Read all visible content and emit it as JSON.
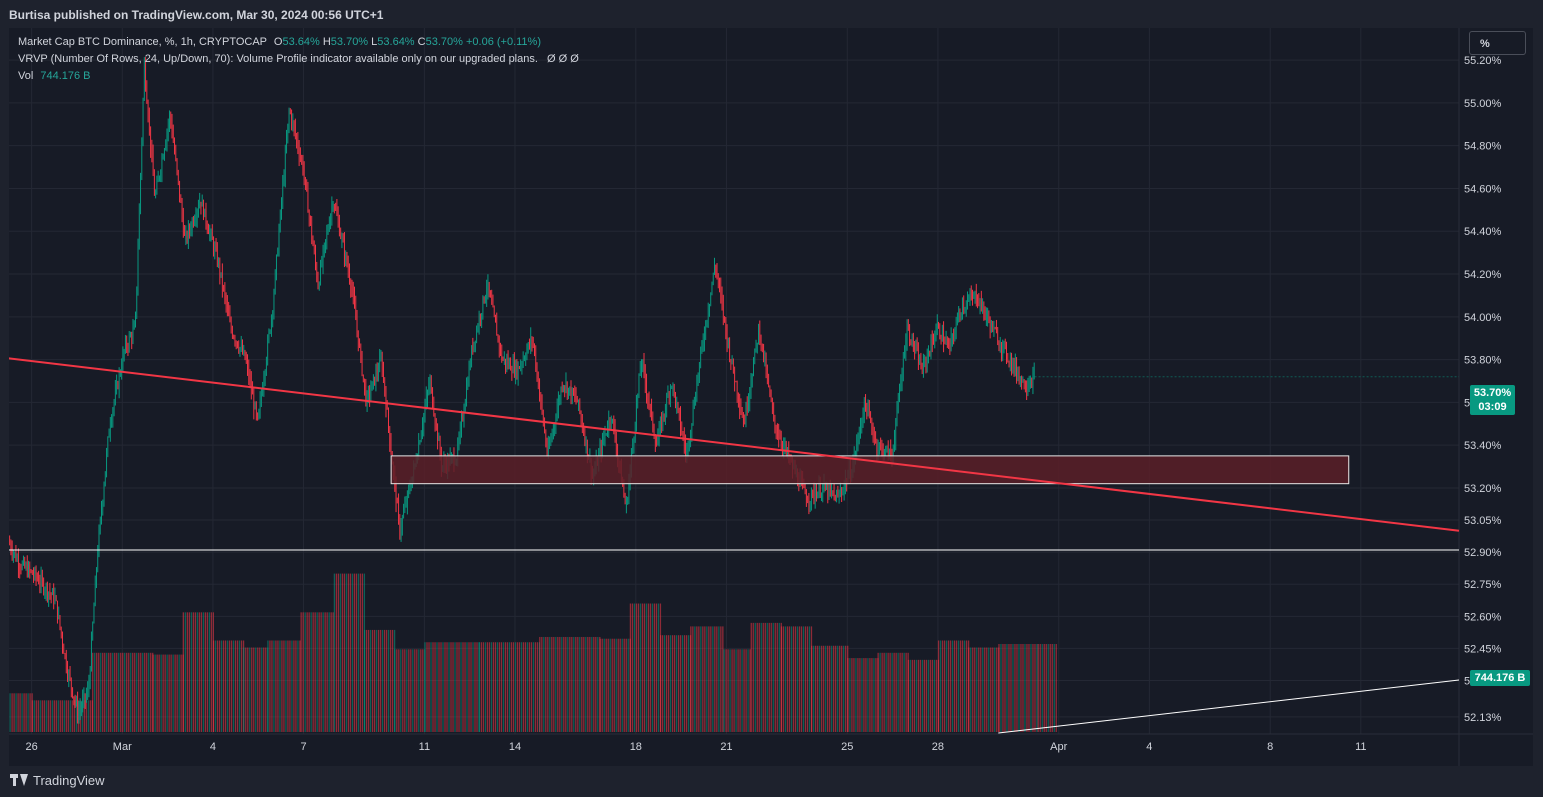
{
  "header": {
    "publisher": "Burtisa published on TradingView.com, Mar 30, 2024 00:56 UTC+1"
  },
  "legend": {
    "title": "Market Cap BTC Dominance, %, 1h, CRYPTOCAP",
    "open_label": "O",
    "open": "53.64%",
    "high_label": "H",
    "high": "53.70%",
    "low_label": "L",
    "low": "53.64%",
    "close_label": "C",
    "close": "53.70%",
    "change": "+0.06 (+0.11%)",
    "vrvp": "VRVP (Number Of Rows, 24, Up/Down, 70): Volume Profile indicator available only on our upgraded plans.",
    "vrvp_values": "Ø  Ø  Ø",
    "vol_label": "Vol",
    "vol_value": "744.176 B"
  },
  "scale_mode": "%",
  "price_tag": {
    "value": "53.70%",
    "countdown": "03:09"
  },
  "volume_tag": "744.176 B",
  "footer": {
    "brand": "TradingView"
  },
  "colors": {
    "up": "#089981",
    "down": "#f23645",
    "trendline": "#f23645",
    "zone_fill": "#5a1e28",
    "level_line": "#ffffff"
  },
  "chart_data": {
    "type": "candlestick",
    "symbol": "Market Cap BTC Dominance",
    "interval": "1h",
    "x_tick_labels": [
      {
        "label": "26",
        "day": 1
      },
      {
        "label": "Mar",
        "day": 4
      },
      {
        "label": "4",
        "day": 7
      },
      {
        "label": "7",
        "day": 10
      },
      {
        "label": "11",
        "day": 14
      },
      {
        "label": "14",
        "day": 17
      },
      {
        "label": "18",
        "day": 21
      },
      {
        "label": "21",
        "day": 24
      },
      {
        "label": "25",
        "day": 28
      },
      {
        "label": "28",
        "day": 31
      },
      {
        "label": "Apr",
        "day": 35
      },
      {
        "label": "4",
        "day": 38
      },
      {
        "label": "8",
        "day": 42
      },
      {
        "label": "11",
        "day": 45
      }
    ],
    "y_tick_labels": [
      "55.20%",
      "55.00%",
      "54.80%",
      "54.60%",
      "54.40%",
      "54.20%",
      "54.00%",
      "53.80%",
      "53.60%",
      "53.40%",
      "53.20%",
      "53.05%",
      "52.90%",
      "52.75%",
      "52.60%",
      "52.45%",
      "52.30%",
      "52.13%"
    ],
    "ylim": [
      52.05,
      55.35
    ],
    "xlim_days": [
      0.25,
      48.25
    ],
    "price_path": [
      [
        0.25,
        52.95
      ],
      [
        0.6,
        52.85
      ],
      [
        1.2,
        52.78
      ],
      [
        1.8,
        52.68
      ],
      [
        2.2,
        52.35
      ],
      [
        2.55,
        52.15
      ],
      [
        2.9,
        52.25
      ],
      [
        3.2,
        52.9
      ],
      [
        3.6,
        53.5
      ],
      [
        4.1,
        53.85
      ],
      [
        4.45,
        53.95
      ],
      [
        4.75,
        55.18
      ],
      [
        5.1,
        54.55
      ],
      [
        5.6,
        54.95
      ],
      [
        6.1,
        54.35
      ],
      [
        6.6,
        54.55
      ],
      [
        7.2,
        54.25
      ],
      [
        7.6,
        53.95
      ],
      [
        8.1,
        53.8
      ],
      [
        8.5,
        53.5
      ],
      [
        9.0,
        54.05
      ],
      [
        9.55,
        54.97
      ],
      [
        10.0,
        54.7
      ],
      [
        10.5,
        54.15
      ],
      [
        11.0,
        54.55
      ],
      [
        11.6,
        54.15
      ],
      [
        12.1,
        53.6
      ],
      [
        12.6,
        53.8
      ],
      [
        13.2,
        53.0
      ],
      [
        13.7,
        53.3
      ],
      [
        14.2,
        53.7
      ],
      [
        14.6,
        53.3
      ],
      [
        15.1,
        53.35
      ],
      [
        15.6,
        53.85
      ],
      [
        16.1,
        54.15
      ],
      [
        16.6,
        53.8
      ],
      [
        17.1,
        53.75
      ],
      [
        17.6,
        53.9
      ],
      [
        18.1,
        53.35
      ],
      [
        18.6,
        53.7
      ],
      [
        19.1,
        53.6
      ],
      [
        19.6,
        53.25
      ],
      [
        20.2,
        53.55
      ],
      [
        20.7,
        53.1
      ],
      [
        21.2,
        53.8
      ],
      [
        21.7,
        53.4
      ],
      [
        22.2,
        53.7
      ],
      [
        22.7,
        53.35
      ],
      [
        23.2,
        53.85
      ],
      [
        23.65,
        54.25
      ],
      [
        24.1,
        53.85
      ],
      [
        24.6,
        53.5
      ],
      [
        25.1,
        53.95
      ],
      [
        25.6,
        53.5
      ],
      [
        26.2,
        53.3
      ],
      [
        26.7,
        53.15
      ],
      [
        27.2,
        53.2
      ],
      [
        27.7,
        53.15
      ],
      [
        28.2,
        53.3
      ],
      [
        28.6,
        53.6
      ],
      [
        29.0,
        53.4
      ],
      [
        29.5,
        53.35
      ],
      [
        30.0,
        53.95
      ],
      [
        30.5,
        53.75
      ],
      [
        31.0,
        53.95
      ],
      [
        31.4,
        53.85
      ],
      [
        31.8,
        54.05
      ],
      [
        32.3,
        54.1
      ],
      [
        32.8,
        53.95
      ],
      [
        33.4,
        53.8
      ],
      [
        33.9,
        53.68
      ],
      [
        34.2,
        53.72
      ]
    ],
    "trendline": {
      "start": [
        0.0,
        53.81
      ],
      "end": [
        48.25,
        53.0
      ]
    },
    "support_zone": {
      "day_start": 12.9,
      "day_end": 44.6,
      "upper": 53.35,
      "lower": 53.22
    },
    "horizontal_level": 52.91,
    "volume_bars": [
      [
        0.0,
        0.22
      ],
      [
        1.0,
        0.18
      ],
      [
        3.0,
        0.45
      ],
      [
        5.0,
        0.44
      ],
      [
        6.0,
        0.68
      ],
      [
        7.0,
        0.52
      ],
      [
        8.0,
        0.48
      ],
      [
        8.8,
        0.52
      ],
      [
        9.9,
        0.68
      ],
      [
        11.0,
        0.9
      ],
      [
        12.0,
        0.58
      ],
      [
        13.0,
        0.47
      ],
      [
        14.0,
        0.51
      ],
      [
        15.8,
        0.51
      ],
      [
        17.8,
        0.54
      ],
      [
        19.8,
        0.53
      ],
      [
        20.8,
        0.73
      ],
      [
        21.8,
        0.55
      ],
      [
        22.8,
        0.6
      ],
      [
        23.9,
        0.47
      ],
      [
        24.8,
        0.62
      ],
      [
        25.8,
        0.6
      ],
      [
        26.8,
        0.49
      ],
      [
        28.0,
        0.42
      ],
      [
        29.0,
        0.45
      ],
      [
        30.0,
        0.41
      ],
      [
        31.0,
        0.52
      ],
      [
        32.0,
        0.48
      ],
      [
        33.0,
        0.5
      ],
      [
        34.3,
        0.5
      ]
    ],
    "volume_line_end": {
      "day": 48.25,
      "value": "744.176 B"
    }
  }
}
